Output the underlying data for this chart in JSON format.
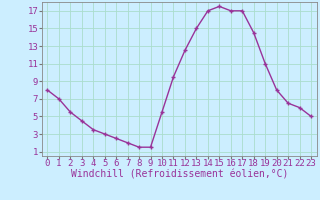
{
  "x": [
    0,
    1,
    2,
    3,
    4,
    5,
    6,
    7,
    8,
    9,
    10,
    11,
    12,
    13,
    14,
    15,
    16,
    17,
    18,
    19,
    20,
    21,
    22,
    23
  ],
  "y": [
    8,
    7,
    5.5,
    4.5,
    3.5,
    3,
    2.5,
    2,
    1.5,
    1.5,
    5.5,
    9.5,
    12.5,
    15,
    17,
    17.5,
    17,
    17,
    14.5,
    11,
    8,
    6.5,
    6,
    5
  ],
  "line_color": "#993399",
  "marker": "+",
  "bg_color": "#cceeff",
  "grid_color": "#aaddcc",
  "xlabel": "Windchill (Refroidissement éolien,°C)",
  "xlim": [
    -0.5,
    23.5
  ],
  "ylim": [
    0.5,
    18
  ],
  "xticks": [
    0,
    1,
    2,
    3,
    4,
    5,
    6,
    7,
    8,
    9,
    10,
    11,
    12,
    13,
    14,
    15,
    16,
    17,
    18,
    19,
    20,
    21,
    22,
    23
  ],
  "yticks": [
    1,
    3,
    5,
    7,
    9,
    11,
    13,
    15,
    17
  ],
  "font_color": "#993399",
  "fontsize": 6.5,
  "xlabel_fontsize": 7,
  "lw": 1.0,
  "markersize": 3.5,
  "markeredgewidth": 1.0
}
